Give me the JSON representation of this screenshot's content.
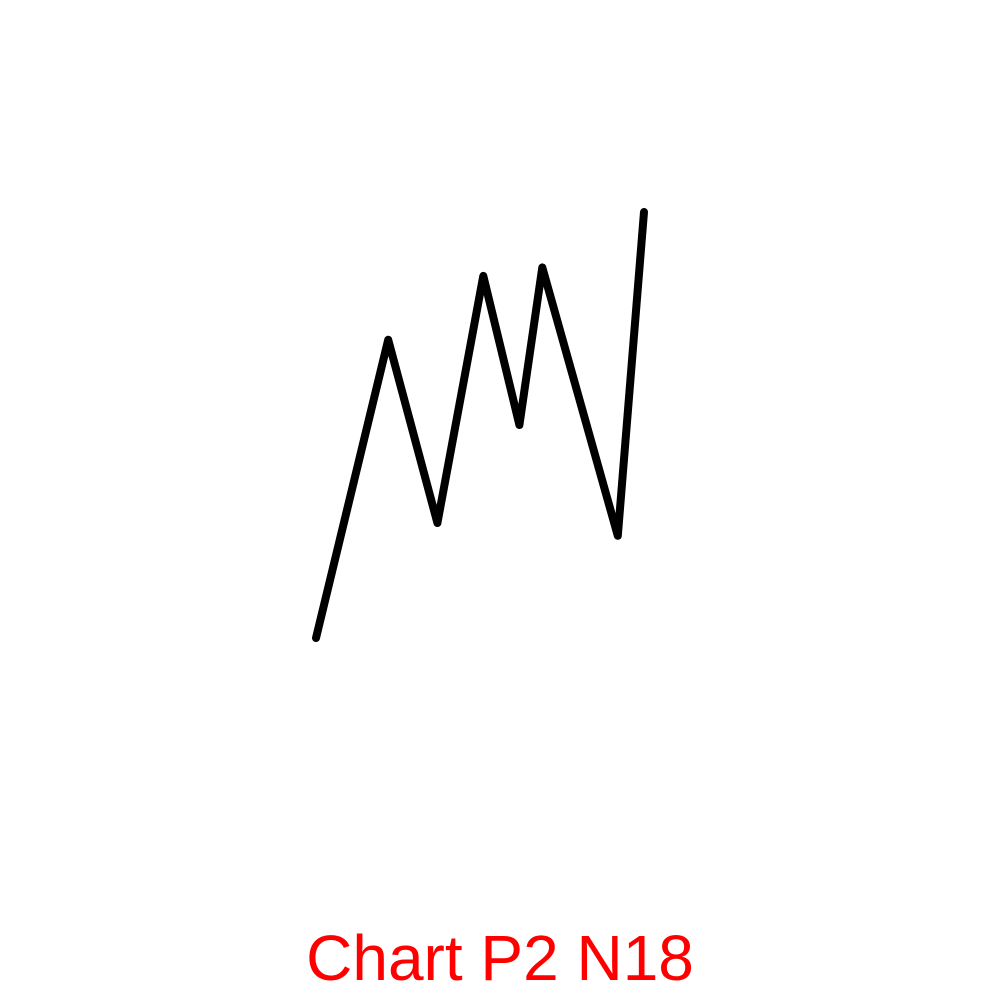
{
  "caption": {
    "text": "Chart P2 N18",
    "color": "#ff0000"
  },
  "chart_data": {
    "type": "line",
    "title": "",
    "xlabel": "",
    "ylabel": "",
    "grid": false,
    "legend": "none",
    "axes_visible": false,
    "line_color": "#000000",
    "xlim": [
      0,
      10
    ],
    "ylim": [
      0,
      10
    ],
    "series": [
      {
        "x": [
          0,
          2.2,
          3.7,
          5.1,
          6.2,
          6.9,
          9.2,
          10
        ],
        "y": [
          0,
          7,
          2.7,
          8.5,
          5,
          8.7,
          2.4,
          10
        ]
      }
    ]
  }
}
